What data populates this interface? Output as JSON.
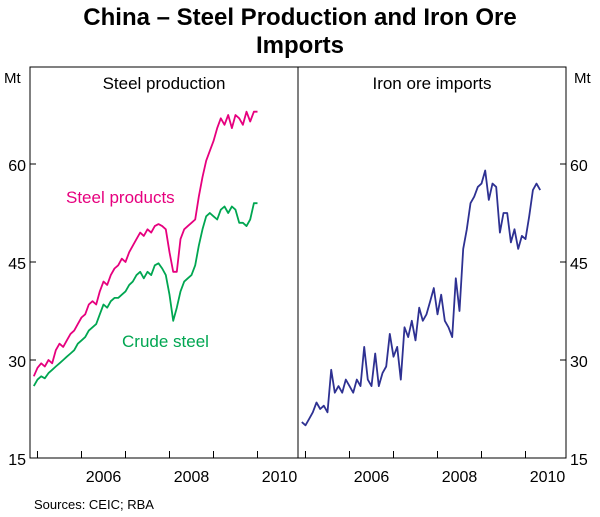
{
  "title_line1": "China – Steel Production and Iron Ore",
  "title_line2": "Imports",
  "source": "Sources: CEIC; RBA",
  "unit_left": "Mt",
  "unit_right": "Mt",
  "colors": {
    "steel_products": "#e6007e",
    "crude_steel": "#00a651",
    "iron_ore": "#2e3192",
    "axis": "#000000"
  },
  "chart_data": [
    {
      "type": "line",
      "panel_title": "Steel production",
      "ylim": [
        15,
        75
      ],
      "yticks": [
        15,
        30,
        45,
        60
      ],
      "xticks": [
        2006,
        2008,
        2010
      ],
      "xlim": [
        2004.83,
        2010.92
      ],
      "series": [
        {
          "name": "Steel products",
          "label": "Steel products",
          "x_start": 2004.917,
          "x_step": 0.08333,
          "values": [
            27.5,
            28.8,
            29.5,
            29.0,
            30.0,
            29.5,
            31.5,
            32.5,
            32.0,
            33.0,
            34.0,
            34.5,
            35.5,
            36.5,
            37.0,
            38.5,
            39.0,
            38.5,
            40.5,
            42.0,
            41.5,
            43.0,
            44.0,
            44.5,
            45.5,
            45.0,
            46.5,
            47.5,
            48.5,
            49.5,
            49.0,
            50.0,
            49.5,
            50.5,
            50.8,
            50.5,
            50.0,
            46.5,
            43.5,
            43.5,
            48.5,
            50.0,
            50.5,
            51.0,
            51.5,
            55.0,
            58.0,
            60.5,
            62.0,
            63.5,
            65.5,
            67.0,
            66.0,
            67.5,
            65.5,
            67.5,
            67.0,
            66.0,
            68.0,
            66.5,
            68.0,
            68.0
          ]
        },
        {
          "name": "Crude steel",
          "label": "Crude steel",
          "x_start": 2004.917,
          "x_step": 0.08333,
          "values": [
            26.0,
            27.0,
            27.5,
            27.2,
            28.0,
            28.5,
            29.0,
            29.5,
            30.0,
            30.5,
            31.0,
            31.5,
            32.5,
            33.0,
            33.5,
            34.5,
            35.0,
            35.5,
            37.0,
            38.5,
            38.0,
            39.0,
            39.5,
            39.5,
            40.0,
            40.5,
            41.5,
            42.0,
            43.0,
            43.5,
            42.5,
            43.5,
            43.0,
            44.5,
            44.8,
            44.0,
            43.0,
            40.0,
            36.0,
            38.0,
            40.5,
            42.0,
            42.5,
            43.0,
            44.5,
            47.5,
            50.0,
            52.0,
            52.5,
            52.0,
            51.5,
            53.0,
            53.5,
            52.5,
            53.5,
            53.0,
            51.0,
            51.0,
            50.5,
            51.5,
            54.0,
            54.0
          ]
        }
      ]
    },
    {
      "type": "line",
      "panel_title": "Iron ore imports",
      "ylim": [
        15,
        75
      ],
      "yticks": [
        15,
        30,
        45,
        60
      ],
      "xticks": [
        2006,
        2008,
        2010
      ],
      "xlim": [
        2004.83,
        2010.92
      ],
      "series": [
        {
          "name": "Iron ore imports",
          "x_start": 2004.917,
          "x_step": 0.08333,
          "values": [
            20.5,
            20.0,
            21.0,
            22.0,
            23.5,
            22.5,
            23.0,
            22.0,
            28.5,
            25.0,
            26.0,
            25.0,
            27.0,
            26.0,
            25.0,
            27.0,
            26.0,
            32.0,
            27.0,
            26.0,
            31.0,
            26.0,
            28.0,
            29.0,
            34.0,
            30.5,
            32.0,
            27.0,
            35.0,
            33.5,
            36.0,
            33.0,
            38.0,
            36.0,
            37.0,
            39.0,
            41.0,
            37.0,
            40.0,
            36.0,
            35.0,
            33.5,
            42.5,
            37.5,
            47.0,
            50.0,
            54.0,
            55.0,
            56.5,
            57.0,
            59.0,
            54.5,
            57.0,
            56.5,
            49.5,
            52.5,
            52.5,
            48.0,
            50.0,
            47.0,
            49.0,
            48.5,
            52.0,
            56.0,
            57.0,
            56.0
          ]
        }
      ]
    }
  ]
}
